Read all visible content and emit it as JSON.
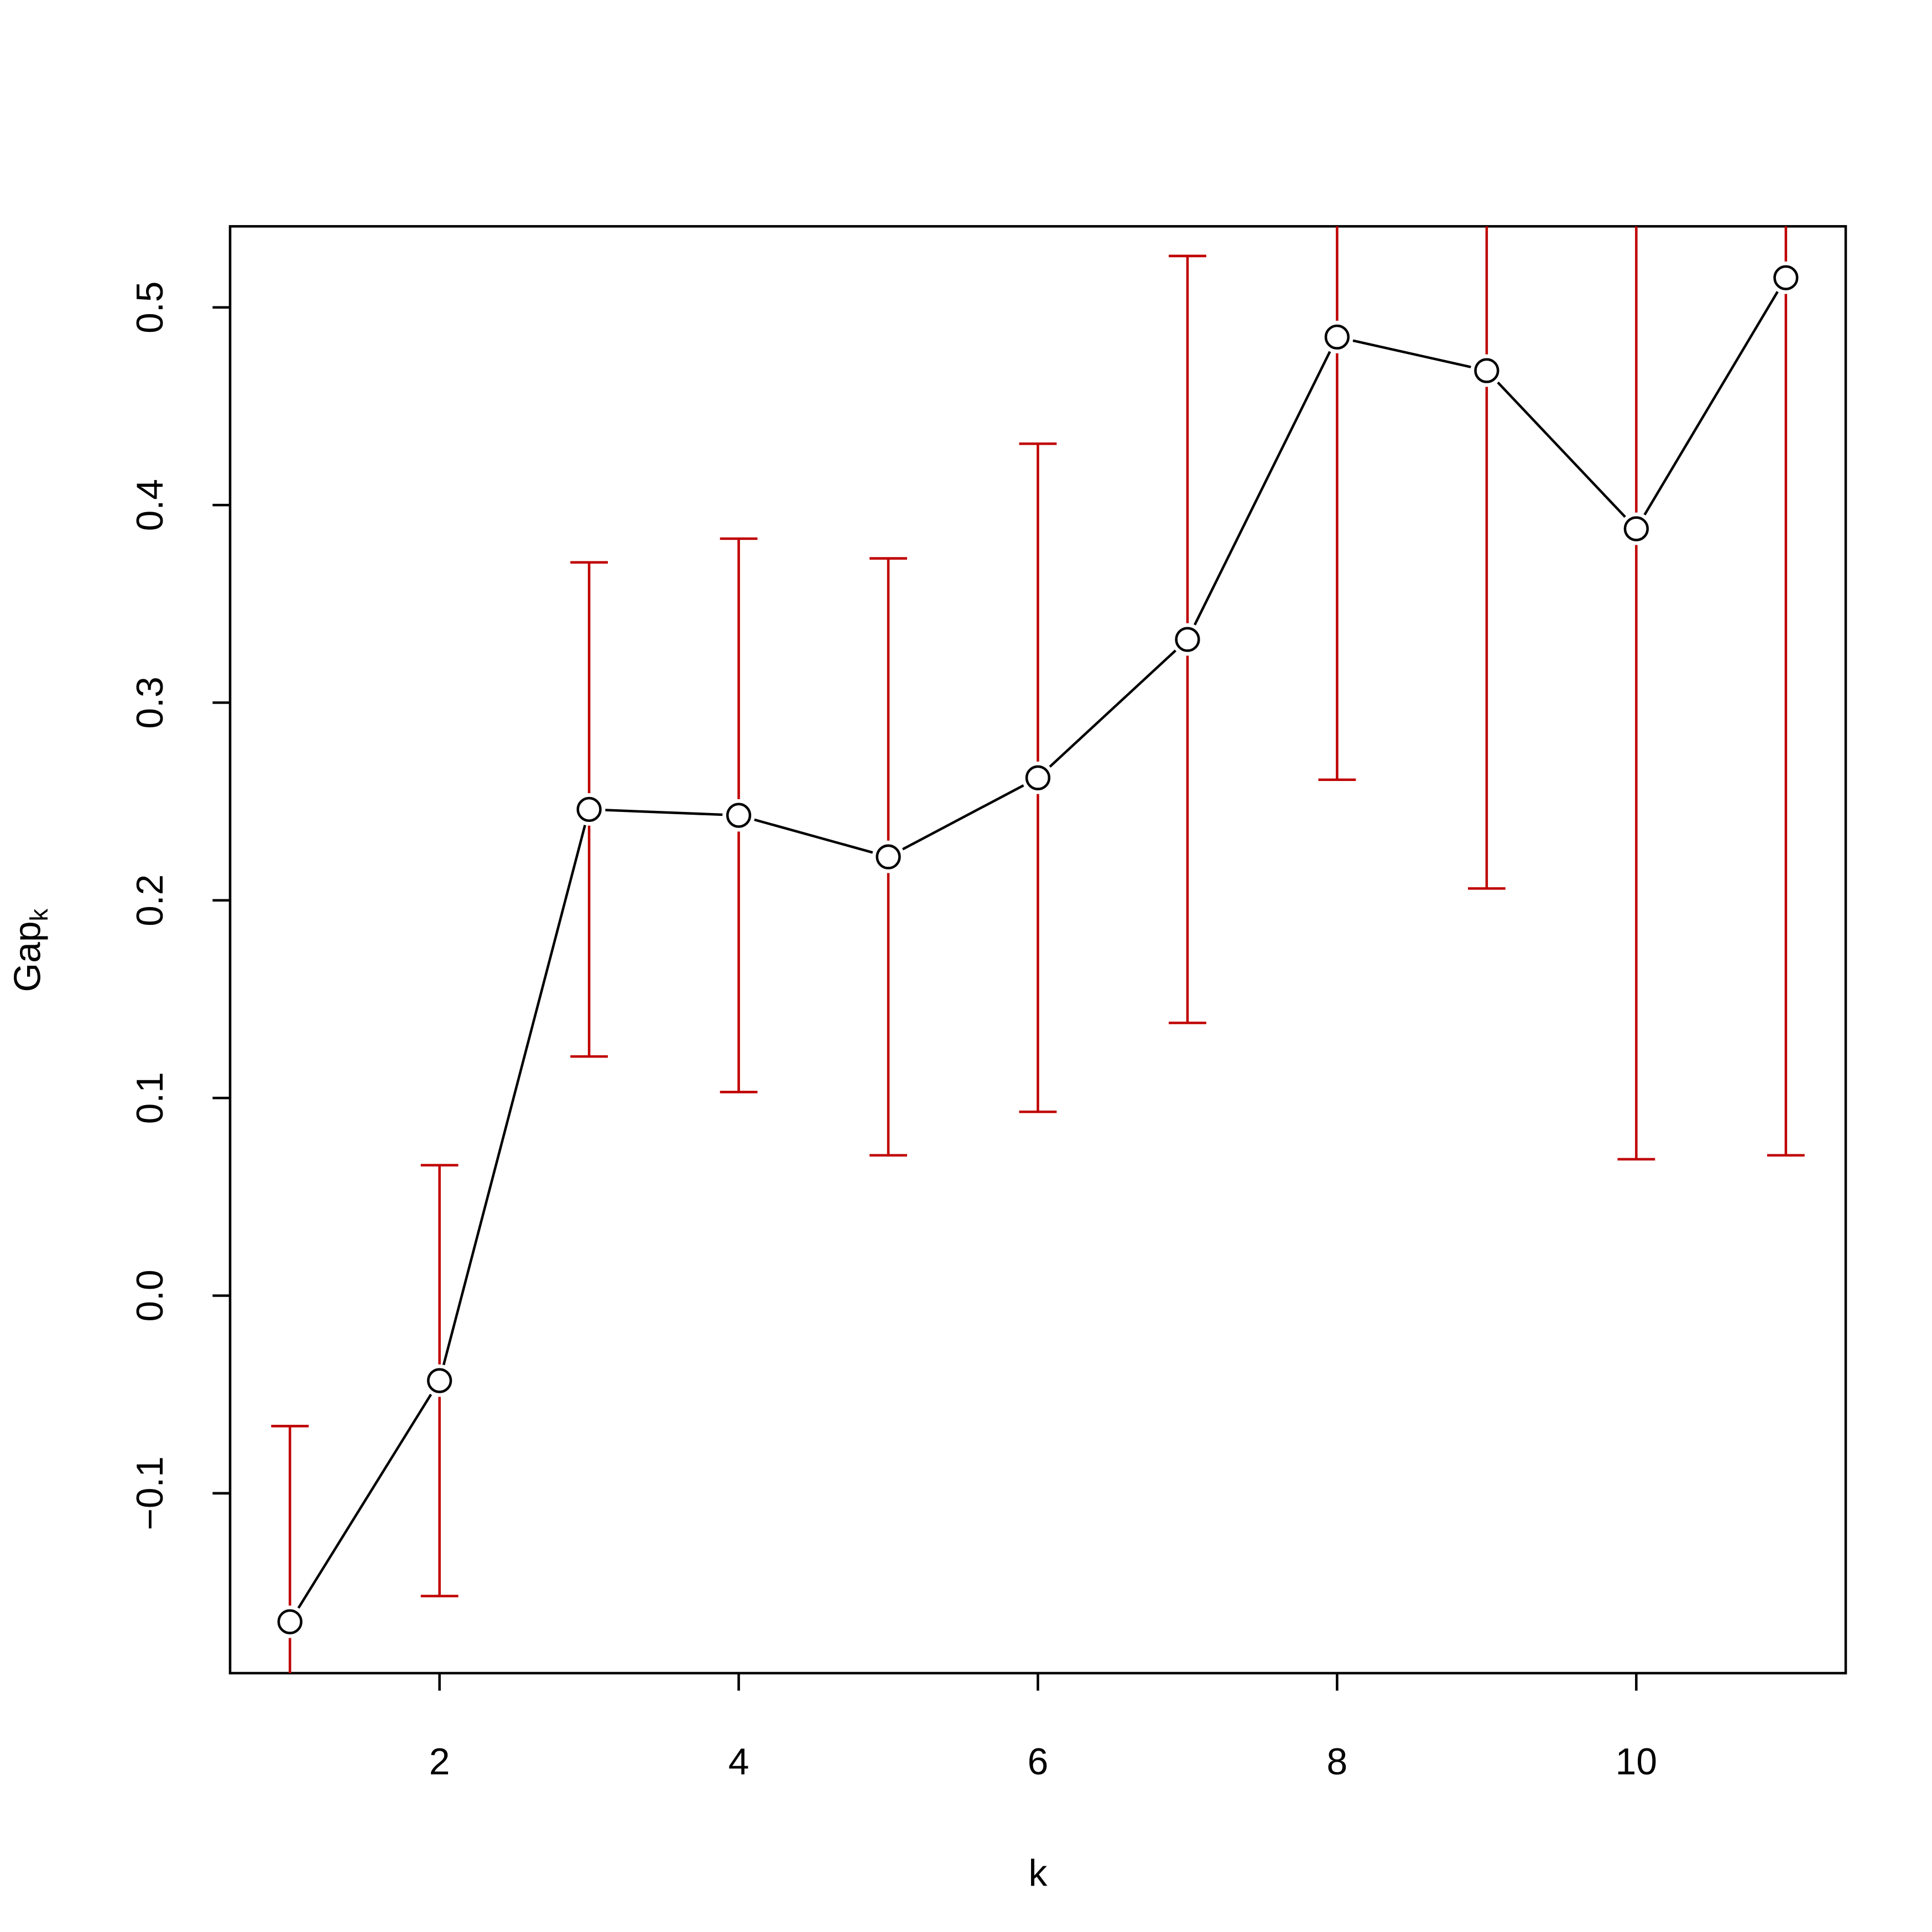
{
  "chart_data": {
    "type": "errorbar-line",
    "xlabel": "k",
    "ylabel": "Gap",
    "ylabel_subscript": "k",
    "x": [
      1,
      2,
      3,
      4,
      5,
      6,
      7,
      8,
      9,
      10,
      11
    ],
    "series": [
      {
        "color": "#000000",
        "error_color": "#c00000",
        "values": [
          -0.165,
          -0.043,
          0.246,
          0.243,
          0.222,
          0.262,
          0.332,
          0.485,
          0.468,
          0.388,
          0.515
        ],
        "errors": [
          0.099,
          0.109,
          0.125,
          0.14,
          0.151,
          0.169,
          0.194,
          0.224,
          0.262,
          0.319,
          0.444
        ]
      }
    ],
    "xlim": [
      0.6,
      11.4
    ],
    "xticks": [
      2,
      4,
      6,
      8,
      10
    ],
    "ylim": [
      -0.191,
      0.541
    ],
    "yticks": [
      {
        "value": -0.1,
        "label": "−0.1"
      },
      {
        "value": 0,
        "label": "0.0"
      },
      0.1,
      0.2,
      0.3,
      0.4,
      0.5
    ]
  }
}
